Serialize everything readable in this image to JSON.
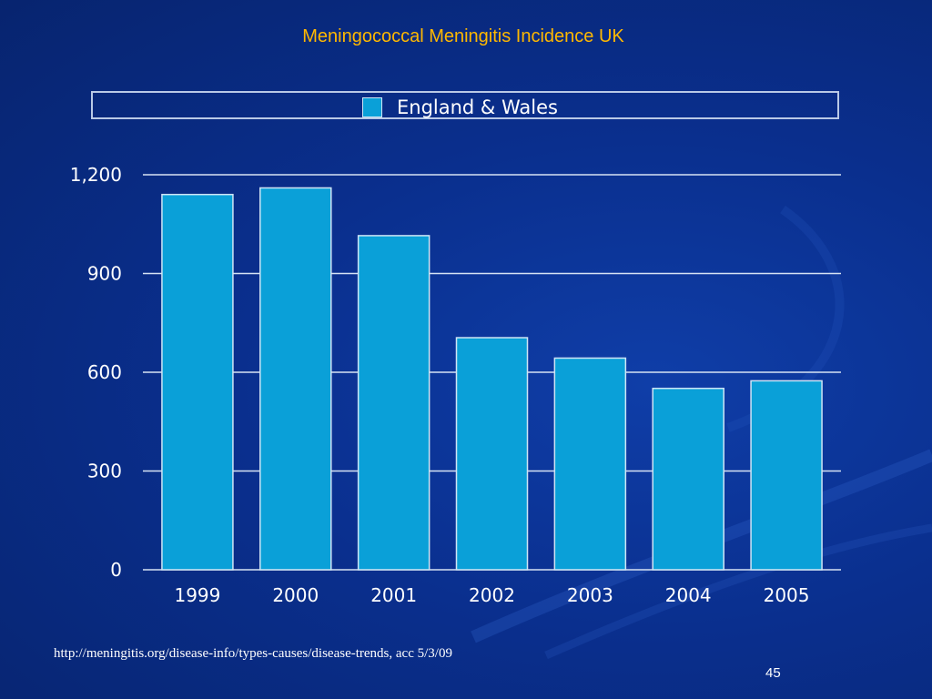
{
  "slide": {
    "title": "Meningococcal Meningitis Incidence UK",
    "source": "http://meningitis.org/disease-info/types-causes/disease-trends, acc 5/3/09",
    "page_number": "45"
  },
  "colors": {
    "title": "#ffb800",
    "bar_fill": "#0aa0d8",
    "bar_border": "#cfe5f5",
    "gridline": "#d7e3f4",
    "text": "#ffffff"
  },
  "chart_data": {
    "type": "bar",
    "title": "",
    "xlabel": "",
    "ylabel": "",
    "categories": [
      "1999",
      "2000",
      "2001",
      "2002",
      "2003",
      "2004",
      "2005"
    ],
    "series": [
      {
        "name": "England & Wales",
        "values": [
          1140,
          1160,
          1015,
          705,
          643,
          551,
          574
        ]
      }
    ],
    "ylim": [
      0,
      1200
    ],
    "yticks": [
      0,
      300,
      600,
      900,
      1200
    ],
    "ytick_labels": [
      "0",
      "300",
      "600",
      "900",
      "1,200"
    ],
    "grid": true,
    "legend_position": "top"
  }
}
